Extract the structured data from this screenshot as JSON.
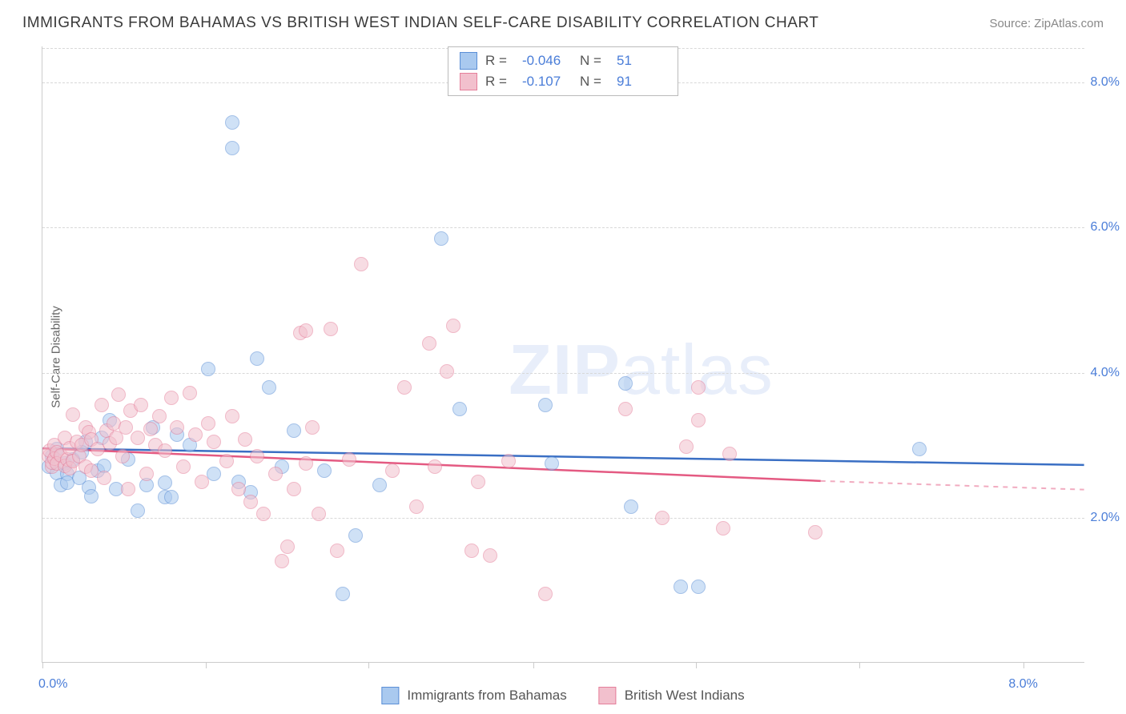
{
  "title": "IMMIGRANTS FROM BAHAMAS VS BRITISH WEST INDIAN SELF-CARE DISABILITY CORRELATION CHART",
  "source": "Source: ZipAtlas.com",
  "ylabel": "Self-Care Disability",
  "watermark": {
    "bold": "ZIP",
    "light": "atlas"
  },
  "chart": {
    "type": "scatter",
    "xlim": [
      0,
      8.5
    ],
    "ylim": [
      0,
      8.5
    ],
    "xtick_positions": [
      0,
      1.33,
      2.66,
      4.0,
      5.33,
      6.66,
      8.0
    ],
    "xtick_labels_left": "0.0%",
    "xtick_labels_right": "8.0%",
    "ytick_positions": [
      2.0,
      4.0,
      6.0,
      8.0
    ],
    "ytick_labels": [
      "2.0%",
      "4.0%",
      "6.0%",
      "8.0%"
    ],
    "grid_color": "#d8d8d8",
    "background_color": "#ffffff",
    "axis_color": "#cccccc",
    "tick_label_color": "#4a7dd8",
    "label_color": "#666666",
    "point_radius": 9,
    "point_opacity": 0.55,
    "series": [
      {
        "name": "Immigrants from Bahamas",
        "fill": "#a9c9ef",
        "stroke": "#5b8fd6",
        "line_color": "#3a6fc4",
        "R": "-0.046",
        "N": "51",
        "trend": {
          "x1": 0,
          "y1": 2.95,
          "x2": 8.5,
          "y2": 2.72
        },
        "points": [
          [
            0.05,
            2.7
          ],
          [
            0.08,
            2.85
          ],
          [
            0.12,
            2.62
          ],
          [
            0.15,
            2.45
          ],
          [
            0.18,
            2.75
          ],
          [
            0.2,
            2.6
          ],
          [
            0.2,
            2.48
          ],
          [
            0.25,
            2.8
          ],
          [
            0.3,
            2.55
          ],
          [
            0.35,
            3.05
          ],
          [
            0.38,
            2.42
          ],
          [
            0.4,
            2.3
          ],
          [
            0.45,
            2.65
          ],
          [
            0.48,
            3.1
          ],
          [
            0.55,
            3.35
          ],
          [
            0.6,
            2.4
          ],
          [
            0.7,
            2.8
          ],
          [
            0.78,
            2.1
          ],
          [
            0.85,
            2.45
          ],
          [
            0.9,
            3.25
          ],
          [
            1.0,
            2.48
          ],
          [
            1.0,
            2.28
          ],
          [
            1.05,
            2.28
          ],
          [
            1.1,
            3.15
          ],
          [
            1.2,
            3.0
          ],
          [
            1.35,
            4.05
          ],
          [
            1.4,
            2.6
          ],
          [
            1.55,
            7.1
          ],
          [
            1.55,
            7.45
          ],
          [
            1.6,
            2.5
          ],
          [
            1.75,
            4.2
          ],
          [
            1.85,
            3.8
          ],
          [
            1.95,
            2.7
          ],
          [
            2.05,
            3.2
          ],
          [
            2.3,
            2.65
          ],
          [
            2.45,
            0.95
          ],
          [
            2.55,
            1.75
          ],
          [
            2.75,
            2.45
          ],
          [
            3.25,
            5.85
          ],
          [
            3.4,
            3.5
          ],
          [
            4.1,
            3.55
          ],
          [
            4.15,
            2.75
          ],
          [
            4.75,
            3.85
          ],
          [
            4.8,
            2.15
          ],
          [
            5.2,
            1.05
          ],
          [
            5.35,
            1.05
          ],
          [
            7.15,
            2.95
          ],
          [
            0.32,
            2.9
          ],
          [
            0.5,
            2.72
          ],
          [
            0.12,
            2.95
          ],
          [
            1.7,
            2.35
          ]
        ]
      },
      {
        "name": "British West Indians",
        "fill": "#f2c0cd",
        "stroke": "#e57f9b",
        "line_color": "#e45a82",
        "R": "-0.107",
        "N": "91",
        "trend": {
          "x1": 0,
          "y1": 2.95,
          "x2": 6.35,
          "y2": 2.5,
          "x_ext": 8.5,
          "y_ext": 2.38
        },
        "points": [
          [
            0.05,
            2.85
          ],
          [
            0.06,
            2.92
          ],
          [
            0.08,
            2.7
          ],
          [
            0.08,
            2.76
          ],
          [
            0.1,
            3.0
          ],
          [
            0.1,
            2.82
          ],
          [
            0.12,
            2.9
          ],
          [
            0.12,
            2.75
          ],
          [
            0.15,
            2.86
          ],
          [
            0.18,
            3.1
          ],
          [
            0.18,
            2.72
          ],
          [
            0.2,
            2.8
          ],
          [
            0.22,
            2.96
          ],
          [
            0.22,
            2.68
          ],
          [
            0.25,
            2.78
          ],
          [
            0.25,
            3.42
          ],
          [
            0.28,
            3.05
          ],
          [
            0.3,
            2.85
          ],
          [
            0.32,
            3.0
          ],
          [
            0.35,
            3.25
          ],
          [
            0.35,
            2.7
          ],
          [
            0.38,
            3.18
          ],
          [
            0.4,
            3.08
          ],
          [
            0.4,
            2.65
          ],
          [
            0.45,
            2.95
          ],
          [
            0.48,
            3.55
          ],
          [
            0.5,
            2.55
          ],
          [
            0.52,
            3.2
          ],
          [
            0.55,
            3.02
          ],
          [
            0.58,
            3.3
          ],
          [
            0.6,
            3.1
          ],
          [
            0.62,
            3.7
          ],
          [
            0.65,
            2.85
          ],
          [
            0.68,
            3.25
          ],
          [
            0.7,
            2.4
          ],
          [
            0.72,
            3.48
          ],
          [
            0.78,
            3.1
          ],
          [
            0.8,
            3.55
          ],
          [
            0.85,
            2.6
          ],
          [
            0.88,
            3.22
          ],
          [
            0.92,
            3.0
          ],
          [
            0.95,
            3.4
          ],
          [
            1.0,
            2.92
          ],
          [
            1.05,
            3.65
          ],
          [
            1.1,
            3.25
          ],
          [
            1.15,
            2.7
          ],
          [
            1.2,
            3.72
          ],
          [
            1.25,
            3.15
          ],
          [
            1.3,
            2.5
          ],
          [
            1.35,
            3.3
          ],
          [
            1.4,
            3.05
          ],
          [
            1.5,
            2.78
          ],
          [
            1.55,
            3.4
          ],
          [
            1.6,
            2.4
          ],
          [
            1.65,
            3.08
          ],
          [
            1.7,
            2.22
          ],
          [
            1.75,
            2.85
          ],
          [
            1.8,
            2.05
          ],
          [
            1.9,
            2.6
          ],
          [
            1.95,
            1.4
          ],
          [
            2.0,
            1.6
          ],
          [
            2.05,
            2.4
          ],
          [
            2.1,
            4.55
          ],
          [
            2.15,
            4.58
          ],
          [
            2.15,
            2.75
          ],
          [
            2.2,
            3.25
          ],
          [
            2.25,
            2.05
          ],
          [
            2.35,
            4.6
          ],
          [
            2.4,
            1.55
          ],
          [
            2.5,
            2.8
          ],
          [
            2.6,
            5.5
          ],
          [
            2.85,
            2.65
          ],
          [
            2.95,
            3.8
          ],
          [
            3.05,
            2.15
          ],
          [
            3.15,
            4.4
          ],
          [
            3.2,
            2.7
          ],
          [
            3.3,
            4.02
          ],
          [
            3.35,
            4.65
          ],
          [
            3.5,
            1.55
          ],
          [
            3.55,
            2.5
          ],
          [
            3.65,
            1.48
          ],
          [
            3.8,
            2.78
          ],
          [
            4.1,
            0.95
          ],
          [
            4.75,
            3.5
          ],
          [
            5.05,
            2.0
          ],
          [
            5.25,
            2.98
          ],
          [
            5.35,
            3.8
          ],
          [
            5.35,
            3.35
          ],
          [
            5.55,
            1.85
          ],
          [
            5.6,
            2.88
          ],
          [
            6.3,
            1.8
          ]
        ]
      }
    ]
  },
  "legend_top": {
    "labels": {
      "R": "R =",
      "N": "N ="
    }
  },
  "legend_bottom": {
    "items": [
      "Immigrants from Bahamas",
      "British West Indians"
    ]
  }
}
